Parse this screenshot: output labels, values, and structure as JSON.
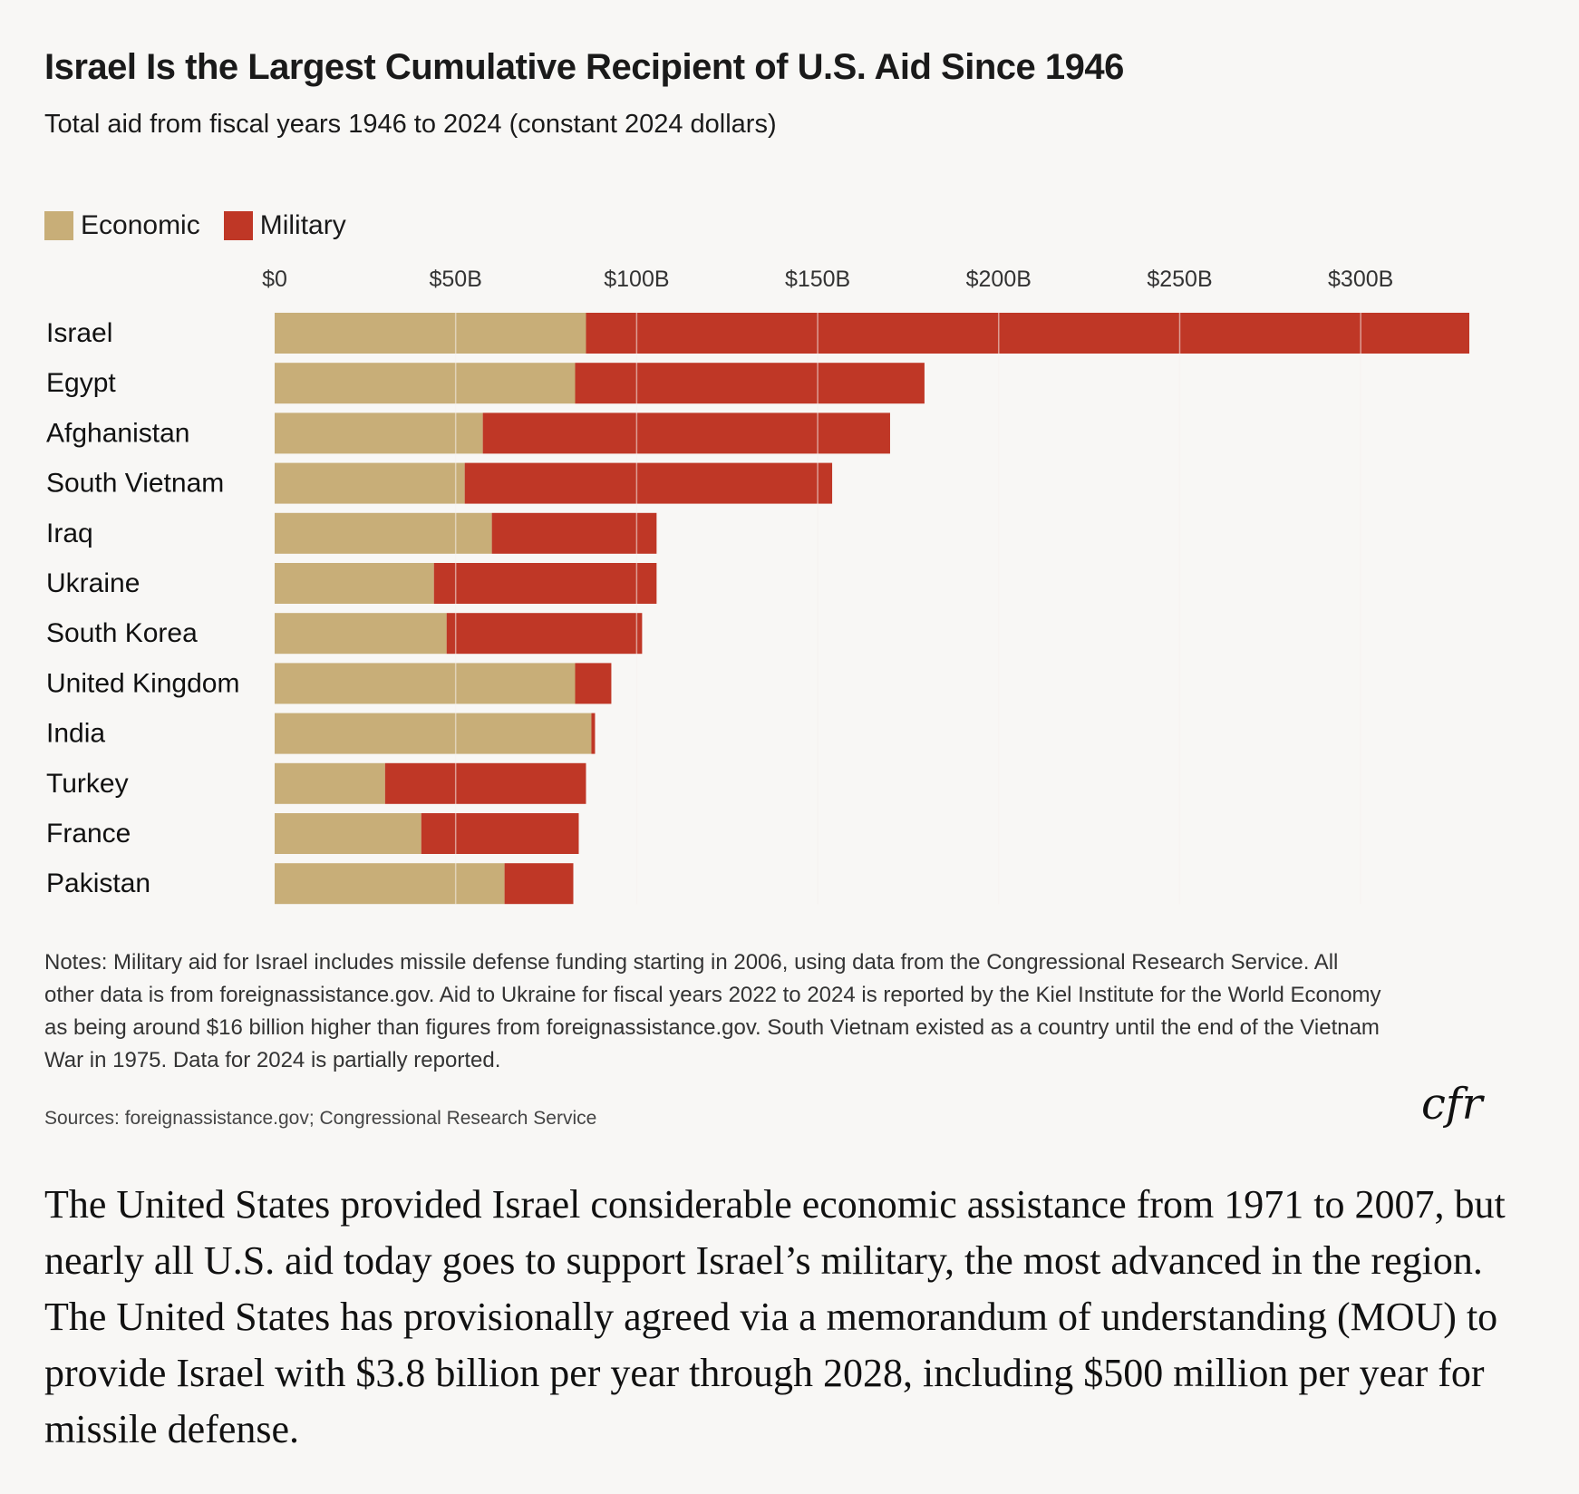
{
  "header": {
    "title": "Israel Is the Largest Cumulative Recipient of U.S. Aid Since 1946",
    "subtitle": "Total aid from fiscal years 1946 to 2024 (constant 2024 dollars)"
  },
  "colors": {
    "economic": "#c8ae78",
    "military": "#bf3726",
    "gridline": "#f5f3ef",
    "background": "#f8f7f5"
  },
  "legend": {
    "economic": "Economic",
    "military": "Military"
  },
  "chart_data": {
    "type": "bar",
    "orientation": "horizontal",
    "stacked": true,
    "categories": [
      "Israel",
      "Egypt",
      "Afghanistan",
      "South Vietnam",
      "Iraq",
      "Ukraine",
      "South Korea",
      "United Kingdom",
      "India",
      "Turkey",
      "France",
      "Pakistan"
    ],
    "series": [
      {
        "name": "Economic",
        "values": [
          86,
          83,
          57.5,
          52.5,
          60,
          44,
          47.5,
          83,
          87.5,
          30.5,
          40.5,
          63.5
        ]
      },
      {
        "name": "Military",
        "values": [
          244,
          96.5,
          112.5,
          101.5,
          45.5,
          61.5,
          54,
          10,
          1,
          55.5,
          43.5,
          19
        ]
      }
    ],
    "x_ticks": [
      0,
      50,
      100,
      150,
      200,
      250,
      300
    ],
    "x_tick_labels": [
      "$0",
      "$50B",
      "$100B",
      "$150B",
      "$200B",
      "$250B",
      "$300B"
    ],
    "xlim": [
      0,
      330
    ],
    "x_axis_position": "top",
    "grid": true,
    "legend_position": "top-left"
  },
  "notes": "Notes: Military aid for Israel includes missile defense funding starting in 2006, using data from the Congressional Research Service. All other data is from foreignassistance.gov. Aid to Ukraine for fiscal years 2022 to 2024 is reported by the Kiel Institute for the World Economy as being around $16 billion higher than figures from foreignassistance.gov. South Vietnam existed as a country until the end of the Vietnam War in 1975. Data for 2024 is partially reported.",
  "sources": "Sources: foreignassistance.gov; Congressional Research Service",
  "logo_text": "cfr",
  "paragraph": "The United States provided Israel considerable economic assistance from 1971 to 2007, but nearly all U.S. aid today goes to support Israel’s military, the most advanced in the region. The United States has provisionally agreed via a memorandum of understanding (MOU) to provide Israel with $3.8 billion per year through 2028, including $500 million per year for missile defense."
}
